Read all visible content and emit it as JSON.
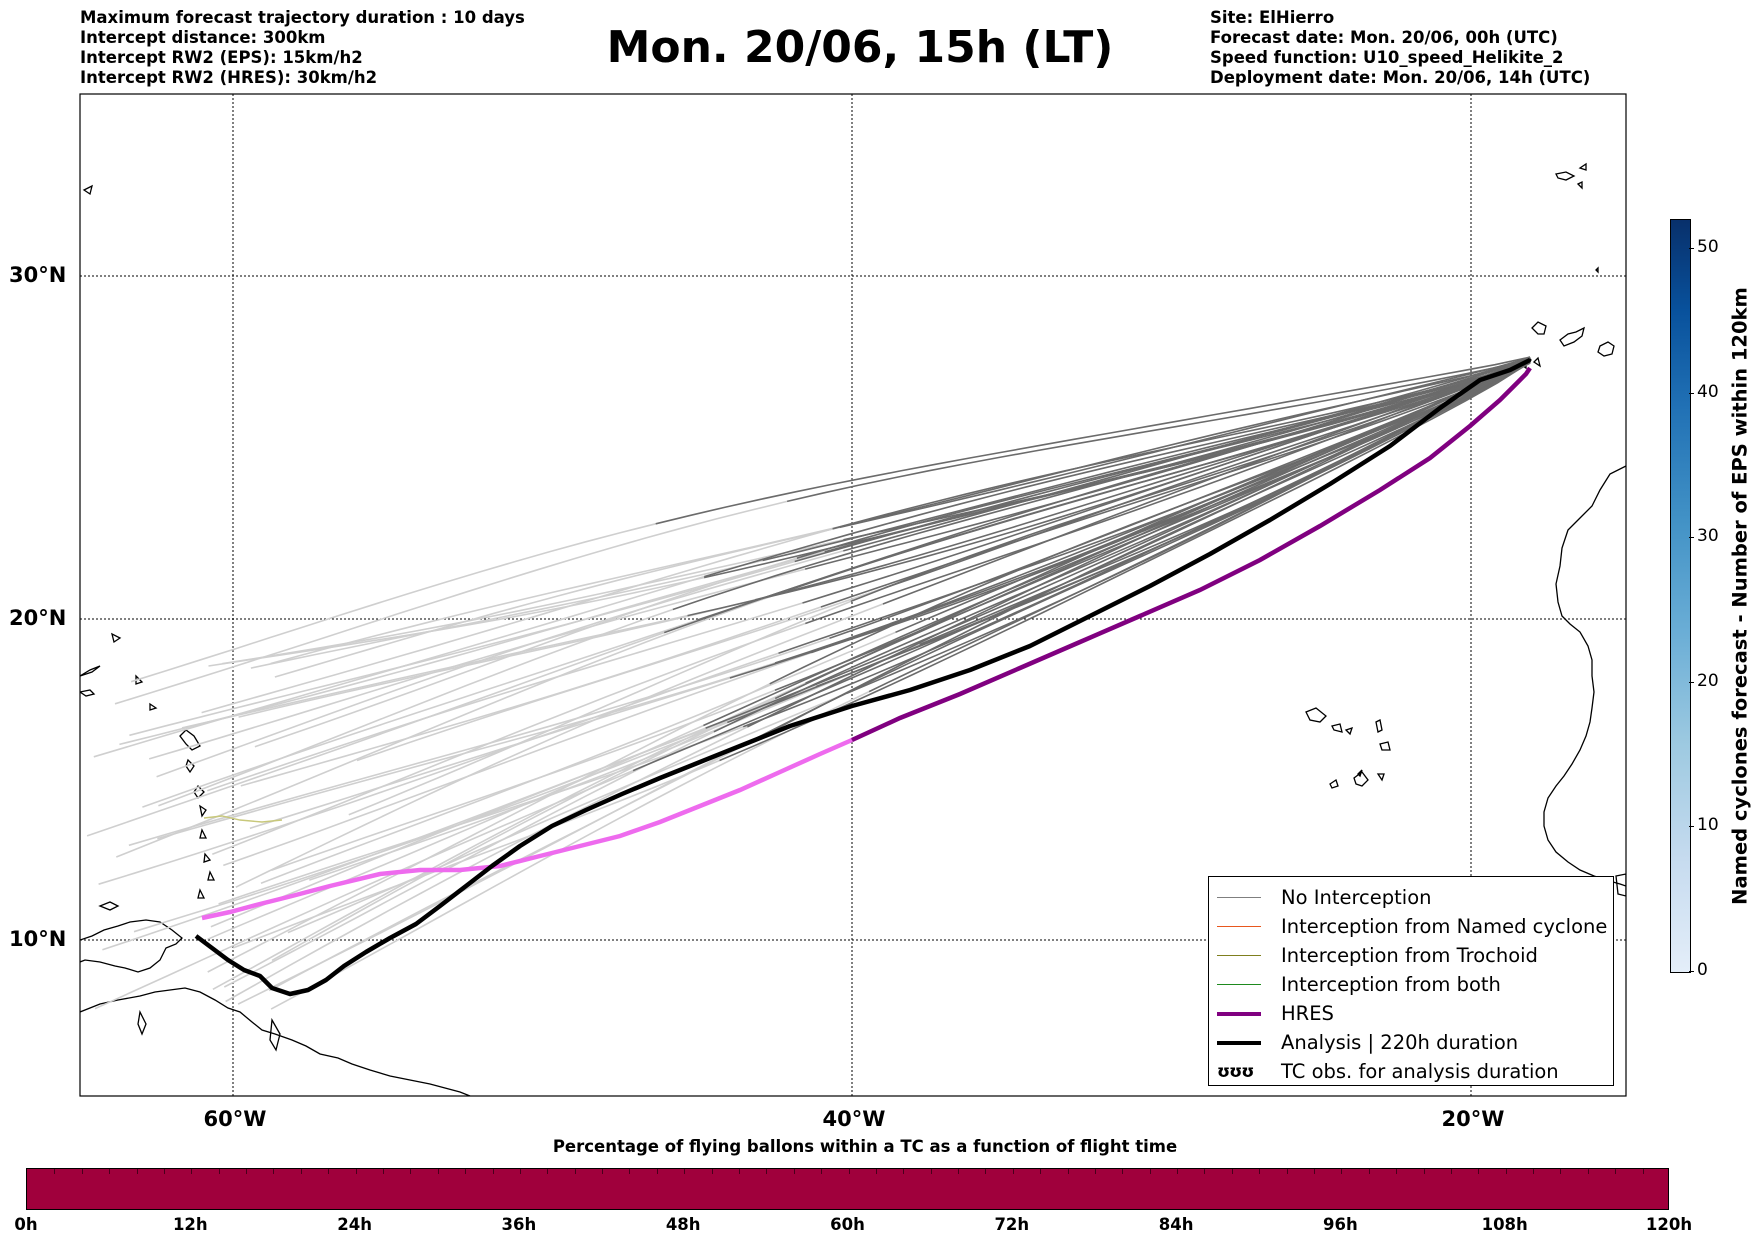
{
  "header": {
    "left_lines": [
      "Maximum forecast trajectory duration : 10 days",
      "Intercept distance: 300km",
      "Intercept RW2 (EPS):  15km/h2",
      "Intercept RW2 (HRES): 30km/h2"
    ],
    "title": "Mon. 20/06, 15h (LT)",
    "right_lines": [
      "Site: ElHierro",
      "Forecast date: Mon. 20/06, 00h (UTC)",
      "Speed function: U10_speed_Helikite_2",
      "Deployment date: Mon. 20/06, 14h (UTC)"
    ]
  },
  "map": {
    "lat_labels": [
      "30°N",
      "20°N",
      "10°N"
    ],
    "lon_labels": [
      "60°W",
      "40°W",
      "20°W"
    ],
    "gridlines": true,
    "legend": {
      "placement": "lower-right",
      "entries": [
        {
          "label": "No Interception",
          "color": "#7f7f7f",
          "style": "thin"
        },
        {
          "label": "Interception from Named cyclone",
          "color": "#e8571e",
          "style": "thin"
        },
        {
          "label": "Interception from Trochoid",
          "color": "#7f7f1e",
          "style": "thin"
        },
        {
          "label": "Interception from both",
          "color": "#1e8a1e",
          "style": "thin"
        },
        {
          "label": "HRES",
          "color": "#800080",
          "style": "thick"
        },
        {
          "label": "Analysis | 220h duration",
          "color": "#000000",
          "style": "thick"
        },
        {
          "label": "TC obs. for analysis duration",
          "symbol": "ʊʊʊ"
        }
      ]
    },
    "colors": {
      "eps_tracks_late": "#6b6b6b",
      "eps_tracks_early": "#cfcfcf",
      "hres_early": "#ee6bee",
      "hres_late": "#800080",
      "analysis": "#000000"
    }
  },
  "colorbar": {
    "label": "Named cyclones forecast - Number of EPS within 120km",
    "ticks": [
      "0",
      "10",
      "20",
      "30",
      "40",
      "50"
    ],
    "range": [
      0,
      52
    ]
  },
  "flight_bar": {
    "title": "Percentage of flying ballons within a TC as a function of flight time",
    "color": "#a0003c",
    "ticks": [
      "0h",
      "12h",
      "24h",
      "36h",
      "48h",
      "60h",
      "72h",
      "84h",
      "96h",
      "108h",
      "120h"
    ]
  }
}
